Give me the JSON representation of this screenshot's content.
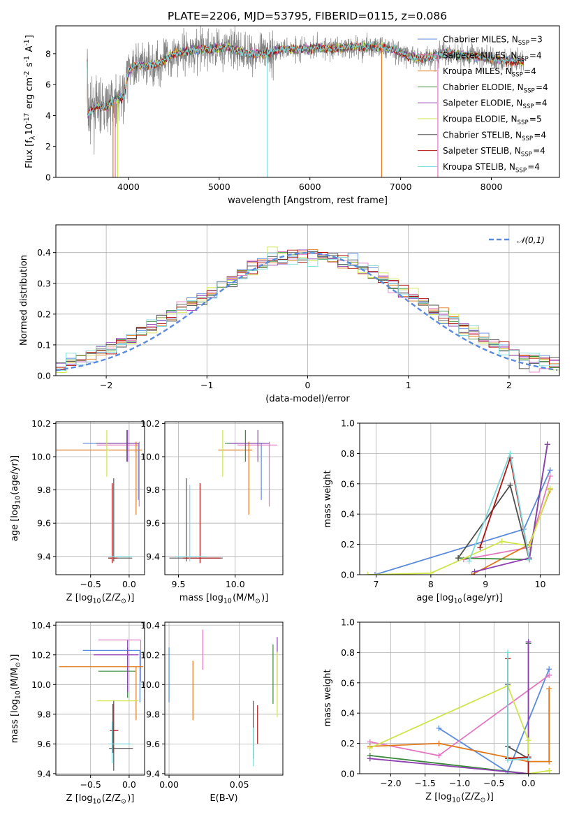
{
  "figure_title": "PLATE=2206, MJD=53795, FIBERID=0115, z=0.086",
  "colors": {
    "Chabrier MILES": "#5b8bdc",
    "Salpeter MILES": "#e377c2",
    "Kroupa MILES": "#e0791a",
    "Chabrier ELODIE": "#3a8a3a",
    "Salpeter ELODIE": "#8e3fb0",
    "Kroupa ELODIE": "#cfe54a",
    "Chabrier STELIB": "#505050",
    "Salpeter STELIB": "#b01010",
    "Kroupa STELIB": "#7fd8dc",
    "data": "#808080",
    "normal": "#5b8bdc"
  },
  "chart_data": [
    {
      "id": "spectrum",
      "type": "line",
      "title": "PLATE=2206, MJD=53795, FIBERID=0115, z=0.086",
      "xlabel": "wavelength [Angstrom, rest frame]",
      "ylabel": "Flux [f$_\\lambda$10$^{-17}$ erg cm$^{-2}$ s$^{-1}$ A$^{-1}$]",
      "xlim": [
        3200,
        8750
      ],
      "ylim": [
        0,
        9.8
      ],
      "xticks": [
        "4000",
        "5000",
        "6000",
        "7000",
        "8000"
      ],
      "yticks": [
        "0",
        "2",
        "4",
        "6",
        "8"
      ],
      "legend_loc": "upper right",
      "legend": [
        {
          "label": "Chabrier MILES, N$_{SSP}$=3",
          "key": "Chabrier MILES"
        },
        {
          "label": "Salpeter MILES, N$_{SSP}$=4",
          "key": "Salpeter MILES"
        },
        {
          "label": "Kroupa MILES, N$_{SSP}$=4",
          "key": "Kroupa MILES"
        },
        {
          "label": "Chabrier ELODIE, N$_{SSP}$=4",
          "key": "Chabrier ELODIE"
        },
        {
          "label": "Salpeter ELODIE, N$_{SSP}$=4",
          "key": "Salpeter ELODIE"
        },
        {
          "label": "Kroupa ELODIE, N$_{SSP}$=5",
          "key": "Kroupa ELODIE"
        },
        {
          "label": "Chabrier STELIB, N$_{SSP}$=4",
          "key": "Chabrier STELIB"
        },
        {
          "label": "Salpeter STELIB, N$_{SSP}$=4",
          "key": "Salpeter STELIB"
        },
        {
          "label": "Kroupa STELIB, N$_{SSP}$=4",
          "key": "Kroupa STELIB"
        }
      ],
      "continuum": [
        [
          3550,
          4.1
        ],
        [
          3650,
          4.6
        ],
        [
          3750,
          4.5
        ],
        [
          3850,
          5.0
        ],
        [
          3950,
          5.2
        ],
        [
          4000,
          6.9
        ],
        [
          4100,
          7.3
        ],
        [
          4200,
          7.2
        ],
        [
          4300,
          7.3
        ],
        [
          4400,
          7.6
        ],
        [
          4500,
          8.0
        ],
        [
          4700,
          8.2
        ],
        [
          4900,
          8.3
        ],
        [
          5100,
          8.4
        ],
        [
          5300,
          8.0
        ],
        [
          5500,
          8.0
        ],
        [
          5700,
          8.3
        ],
        [
          5900,
          8.3
        ],
        [
          6100,
          8.4
        ],
        [
          6300,
          8.3
        ],
        [
          6500,
          8.5
        ],
        [
          6700,
          8.4
        ],
        [
          6900,
          8.3
        ],
        [
          7100,
          7.8
        ],
        [
          7300,
          7.7
        ],
        [
          7500,
          8.1
        ],
        [
          7700,
          7.9
        ],
        [
          8000,
          7.7
        ],
        [
          8200,
          7.5
        ],
        [
          8350,
          7.5
        ]
      ],
      "dropouts": [
        {
          "x": 3830,
          "model": "Kroupa MILES"
        },
        {
          "x": 3855,
          "model": "Salpeter MILES"
        },
        {
          "x": 3880,
          "model": "Kroupa ELODIE"
        },
        {
          "x": 5530,
          "model": "Kroupa STELIB"
        },
        {
          "x": 6790,
          "model": "Kroupa MILES"
        },
        {
          "x": 7410,
          "model": "Salpeter MILES"
        }
      ]
    },
    {
      "id": "residuals",
      "type": "histogram",
      "xlabel": "(data-model)/error",
      "ylabel": "Normed distribution",
      "xlim": [
        -2.5,
        2.5
      ],
      "ylim": [
        0,
        0.49
      ],
      "xticks": [
        "−2",
        "−1",
        "0",
        "1",
        "2"
      ],
      "yticks": [
        "0.0",
        "0.1",
        "0.2",
        "0.3",
        "0.4"
      ],
      "grid": true,
      "legend_loc": "upper right",
      "curve_label": "$\\mathcal{N}(0,1)$",
      "bin_width": 0.1
    },
    {
      "id": "age_vs_Z",
      "type": "errorbar",
      "xlabel": "Z [log$_{10}$(Z/Z$_\\odot$)]",
      "ylabel": "age  [log$_{10}$(age/yr)]",
      "xlim": [
        -0.95,
        0.2
      ],
      "ylim": [
        9.29,
        10.21
      ],
      "xticks": [
        "−0.5",
        "0.0"
      ],
      "yticks": [
        "9.4",
        "9.6",
        "9.8",
        "10.0",
        "10.2"
      ],
      "grid": true,
      "points": [
        {
          "model": "Chabrier MILES",
          "x": 0.12,
          "y": 10.08,
          "xerr": [
            0.72,
            0.0
          ],
          "yerr": [
            0.34,
            0.0
          ]
        },
        {
          "model": "Salpeter MILES",
          "x": 0.13,
          "y": 10.07,
          "xerr": [
            0.55,
            0.0
          ],
          "yerr": [
            0.37,
            0.02
          ]
        },
        {
          "model": "Kroupa MILES",
          "x": 0.09,
          "y": 10.04,
          "xerr": [
            1.06,
            0.08
          ],
          "yerr": [
            0.39,
            0.05
          ]
        },
        {
          "model": "Chabrier ELODIE",
          "x": -0.03,
          "y": 10.08,
          "xerr": [
            0.4,
            0.12
          ],
          "yerr": [
            0.11,
            0.08
          ]
        },
        {
          "model": "Salpeter ELODIE",
          "x": -0.02,
          "y": 10.08,
          "xerr": [
            0.4,
            0.15
          ],
          "yerr": [
            0.11,
            0.08
          ]
        },
        {
          "model": "Kroupa ELODIE",
          "x": -0.29,
          "y": 10.04,
          "xerr": [
            0.0,
            0.03
          ],
          "yerr": [
            0.16,
            0.12
          ]
        },
        {
          "model": "Chabrier STELIB",
          "x": -0.2,
          "y": 9.39,
          "xerr": [
            0.07,
            0.24
          ],
          "yerr": [
            0.02,
            0.48
          ]
        },
        {
          "model": "Salpeter STELIB",
          "x": -0.22,
          "y": 9.39,
          "xerr": [
            0.05,
            0.07
          ],
          "yerr": [
            0.03,
            0.45
          ]
        },
        {
          "model": "Kroupa STELIB",
          "x": -0.21,
          "y": 9.4,
          "xerr": [
            0.06,
            0.25
          ],
          "yerr": [
            0.03,
            0.43
          ]
        }
      ]
    },
    {
      "id": "age_vs_mass",
      "type": "errorbar",
      "xlabel": "mass [log$_{10}$(M/M$_\\odot$)]",
      "ylabel": "",
      "xlim": [
        9.38,
        10.42
      ],
      "ylim": [
        9.29,
        10.21
      ],
      "xticks": [
        "9.5",
        "10.0"
      ],
      "yticks": [
        "9.4",
        "9.6",
        "9.8",
        "10.0",
        "10.2"
      ],
      "grid": true,
      "points": [
        {
          "model": "Chabrier MILES",
          "x": 10.23,
          "y": 10.08,
          "xerr": [
            0.3,
            0.06
          ],
          "yerr": [
            0.34,
            0.0
          ]
        },
        {
          "model": "Salpeter MILES",
          "x": 10.3,
          "y": 10.07,
          "xerr": [
            0.28,
            0.07
          ],
          "yerr": [
            0.37,
            0.02
          ]
        },
        {
          "model": "Kroupa MILES",
          "x": 10.12,
          "y": 10.04,
          "xerr": [
            0.27,
            0.03
          ],
          "yerr": [
            0.39,
            0.05
          ]
        },
        {
          "model": "Chabrier ELODIE",
          "x": 10.09,
          "y": 10.08,
          "xerr": [
            0.18,
            0.16
          ],
          "yerr": [
            0.11,
            0.08
          ]
        },
        {
          "model": "Salpeter ELODIE",
          "x": 10.2,
          "y": 10.08,
          "xerr": [
            0.25,
            0.1
          ],
          "yerr": [
            0.11,
            0.08
          ]
        },
        {
          "model": "Kroupa ELODIE",
          "x": 9.89,
          "y": 10.04,
          "xerr": [
            0.0,
            0.0
          ],
          "yerr": [
            0.16,
            0.12
          ]
        },
        {
          "model": "Chabrier STELIB",
          "x": 9.57,
          "y": 9.39,
          "xerr": [
            0.15,
            0.32
          ],
          "yerr": [
            0.02,
            0.48
          ]
        },
        {
          "model": "Salpeter STELIB",
          "x": 9.69,
          "y": 9.39,
          "xerr": [
            0.15,
            0.18
          ],
          "yerr": [
            0.03,
            0.45
          ]
        },
        {
          "model": "Kroupa STELIB",
          "x": 9.6,
          "y": 9.4,
          "xerr": [
            0.13,
            0.15
          ],
          "yerr": [
            0.03,
            0.43
          ]
        }
      ]
    },
    {
      "id": "mass_weight_vs_age",
      "type": "line",
      "xlabel": "age  [log$_{10}$(age/yr)]",
      "ylabel": "mass weight",
      "xlim": [
        6.7,
        10.35
      ],
      "ylim": [
        0,
        1.0
      ],
      "xticks": [
        "7",
        "8",
        "9",
        "10"
      ],
      "yticks": [
        "0.0",
        "0.2",
        "0.4",
        "0.6",
        "0.8",
        "1.0"
      ],
      "grid": true,
      "series": [
        {
          "model": "Chabrier MILES",
          "x": [
            6.98,
            9.7,
            10.18
          ],
          "y": [
            0.0,
            0.3,
            0.69
          ]
        },
        {
          "model": "Salpeter MILES",
          "x": [
            8.6,
            9.8,
            10.18
          ],
          "y": [
            0.1,
            0.18,
            0.65
          ]
        },
        {
          "model": "Kroupa MILES",
          "x": [
            8.75,
            9.8,
            10.18
          ],
          "y": [
            0.0,
            0.2,
            0.56
          ]
        },
        {
          "model": "Chabrier ELODIE",
          "x": [
            8.5,
            9.8,
            10.13
          ],
          "y": [
            0.11,
            0.1,
            0.86
          ]
        },
        {
          "model": "Salpeter ELODIE",
          "x": [
            8.8,
            9.8,
            10.13
          ],
          "y": [
            0.02,
            0.11,
            0.86
          ]
        },
        {
          "model": "Kroupa ELODIE",
          "x": [
            6.85,
            8.0,
            9.3,
            9.8,
            10.18
          ],
          "y": [
            0.0,
            0.01,
            0.22,
            0.19,
            0.57
          ]
        },
        {
          "model": "Chabrier STELIB",
          "x": [
            8.5,
            9.45,
            9.8
          ],
          "y": [
            0.11,
            0.59,
            0.1
          ]
        },
        {
          "model": "Salpeter STELIB",
          "x": [
            8.9,
            9.45,
            9.8
          ],
          "y": [
            0.18,
            0.77,
            0.1
          ]
        },
        {
          "model": "Kroupa STELIB",
          "x": [
            8.7,
            9.45,
            9.8
          ],
          "y": [
            0.09,
            0.8,
            0.1
          ]
        }
      ]
    },
    {
      "id": "mass_vs_Z",
      "type": "errorbar",
      "xlabel": "Z [log$_{10}$(Z/Z$_\\odot$)]",
      "ylabel": "mass [log$_{10}$(M/M$_\\odot$)]",
      "xlim": [
        -0.95,
        0.2
      ],
      "ylim": [
        9.39,
        10.42
      ],
      "xticks": [
        "−0.5",
        "0.0"
      ],
      "yticks": [
        "9.4",
        "9.6",
        "9.8",
        "10.0",
        "10.2",
        "10.4"
      ],
      "grid": true,
      "points": [
        {
          "model": "Chabrier MILES",
          "x": 0.14,
          "y": 10.23,
          "xerr": [
            0.74,
            0.0
          ],
          "yerr": [
            0.35,
            0.0
          ]
        },
        {
          "model": "Salpeter MILES",
          "x": 0.15,
          "y": 10.3,
          "xerr": [
            0.55,
            0.0
          ],
          "yerr": [
            0.28,
            0.0
          ]
        },
        {
          "model": "Kroupa MILES",
          "x": 0.09,
          "y": 10.12,
          "xerr": [
            1.0,
            0.09
          ],
          "yerr": [
            0.36,
            0.0
          ]
        },
        {
          "model": "Chabrier ELODIE",
          "x": -0.02,
          "y": 10.09,
          "xerr": [
            0.38,
            0.1
          ],
          "yerr": [
            0.18,
            0.16
          ]
        },
        {
          "model": "Salpeter ELODIE",
          "x": -0.02,
          "y": 10.2,
          "xerr": [
            0.44,
            0.14
          ],
          "yerr": [
            0.25,
            0.1
          ]
        },
        {
          "model": "Kroupa ELODIE",
          "x": -0.3,
          "y": 9.89,
          "xerr": [
            0.12,
            0.42
          ],
          "yerr": [
            0.0,
            0.0
          ]
        },
        {
          "model": "Chabrier STELIB",
          "x": -0.2,
          "y": 9.57,
          "xerr": [
            0.06,
            0.25
          ],
          "yerr": [
            0.15,
            0.32
          ]
        },
        {
          "model": "Salpeter STELIB",
          "x": -0.21,
          "y": 9.69,
          "xerr": [
            0.04,
            0.07
          ],
          "yerr": [
            0.15,
            0.18
          ]
        },
        {
          "model": "Kroupa STELIB",
          "x": -0.22,
          "y": 9.6,
          "xerr": [
            0.05,
            0.25
          ],
          "yerr": [
            0.13,
            0.15
          ]
        }
      ]
    },
    {
      "id": "mass_vs_EBV",
      "type": "errorbar",
      "xlabel": "E(B-V)",
      "ylabel": "",
      "xlim": [
        -0.003,
        0.081
      ],
      "ylim": [
        9.39,
        10.42
      ],
      "xticks": [
        "0.00",
        "0.05"
      ],
      "yticks": [
        "9.4",
        "9.6",
        "9.8",
        "10.0",
        "10.2",
        "10.4"
      ],
      "grid": true,
      "points": [
        {
          "model": "Chabrier MILES",
          "x": 0.0,
          "y": 10.08,
          "yerr": [
            0.2,
            0.17
          ]
        },
        {
          "model": "Salpeter MILES",
          "x": 0.024,
          "y": 10.24,
          "yerr": [
            0.14,
            0.13
          ]
        },
        {
          "model": "Kroupa MILES",
          "x": 0.017,
          "y": 9.96,
          "yerr": [
            0.2,
            0.2
          ]
        },
        {
          "model": "Chabrier ELODIE",
          "x": 0.074,
          "y": 10.07,
          "yerr": [
            0.2,
            0.2
          ]
        },
        {
          "model": "Salpeter ELODIE",
          "x": 0.077,
          "y": 10.19,
          "yerr": [
            0.2,
            0.13
          ]
        },
        {
          "model": "Kroupa ELODIE",
          "x": 0.077,
          "y": 10.0,
          "yerr": [
            0.22,
            0.22
          ]
        },
        {
          "model": "Chabrier STELIB",
          "x": 0.06,
          "y": 9.69,
          "yerr": [
            0.19,
            0.2
          ]
        },
        {
          "model": "Salpeter STELIB",
          "x": 0.063,
          "y": 9.73,
          "yerr": [
            0.13,
            0.13
          ]
        },
        {
          "model": "Kroupa STELIB",
          "x": 0.06,
          "y": 9.58,
          "yerr": [
            0.13,
            0.13
          ]
        }
      ]
    },
    {
      "id": "mass_weight_vs_Z",
      "type": "line",
      "xlabel": "Z [log$_{10}$(Z/Z$_\\odot$)]",
      "ylabel": "mass weight",
      "xlim": [
        -2.45,
        0.45
      ],
      "ylim": [
        0,
        1.0
      ],
      "xticks": [
        "−2.0",
        "−1.5",
        "−1.0",
        "−0.5",
        "0.0"
      ],
      "yticks": [
        "0.0",
        "0.2",
        "0.4",
        "0.6",
        "0.8",
        "1.0"
      ],
      "grid": true,
      "series": [
        {
          "model": "Chabrier MILES",
          "x": [
            -1.3,
            -0.3,
            0.3
          ],
          "y": [
            0.3,
            0.01,
            0.69
          ]
        },
        {
          "model": "Salpeter MILES",
          "x": [
            -2.3,
            -1.3,
            0.3
          ],
          "y": [
            0.21,
            0.12,
            0.65
          ]
        },
        {
          "model": "Kroupa MILES",
          "x": [
            -2.3,
            -1.3,
            0.0,
            0.3,
            0.3
          ],
          "y": [
            0.18,
            0.2,
            0.08,
            0.08,
            0.56
          ]
        },
        {
          "model": "Chabrier ELODIE",
          "x": [
            -2.3,
            0.0,
            0.0
          ],
          "y": [
            0.12,
            0.0,
            0.86
          ]
        },
        {
          "model": "Salpeter ELODIE",
          "x": [
            -2.3,
            0.0,
            0.0
          ],
          "y": [
            0.1,
            0.0,
            0.87
          ]
        },
        {
          "model": "Kroupa ELODIE",
          "x": [
            -2.3,
            -0.3,
            0.0,
            0.0,
            0.3
          ],
          "y": [
            0.17,
            0.58,
            0.22,
            0.0,
            0.02
          ]
        },
        {
          "model": "Chabrier STELIB",
          "x": [
            -0.3,
            -0.3,
            0.0,
            0.0
          ],
          "y": [
            0.59,
            0.18,
            0.1,
            0.0
          ]
        },
        {
          "model": "Salpeter STELIB",
          "x": [
            -0.3,
            -0.3,
            0.0,
            0.0
          ],
          "y": [
            0.76,
            0.1,
            0.11,
            0.0
          ]
        },
        {
          "model": "Kroupa STELIB",
          "x": [
            -0.3,
            -0.3,
            0.0
          ],
          "y": [
            0.8,
            0.09,
            0.1
          ]
        }
      ]
    }
  ]
}
